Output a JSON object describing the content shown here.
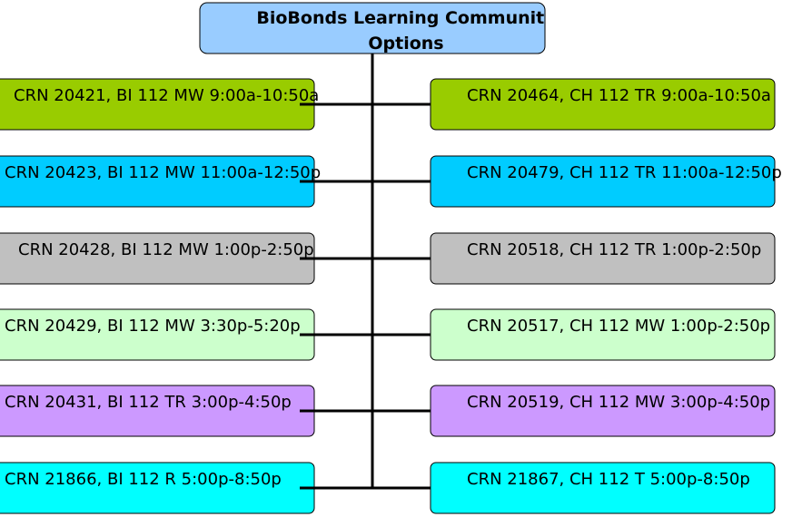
{
  "title": {
    "line1": "BioBonds Learning Community",
    "line2": "Options"
  },
  "left": [
    "CRN 20421, BI 112 MW 9:00a-10:50a",
    "CRN 20423, BI 112 MW 11:00a-12:50p",
    "CRN 20428, BI 112 MW 1:00p-2:50p",
    "CRN 20429, BI 112 MW 3:30p-5:20p",
    "CRN 20431, BI 112 TR 3:00p-4:50p",
    "CRN 21866, BI 112 R 5:00p-8:50p"
  ],
  "right": [
    "CRN 20464, CH 112 TR 9:00a-10:50a",
    "CRN 20479, CH 112 TR 11:00a-12:50p",
    "CRN 20518, CH 112 TR 1:00p-2:50p",
    "CRN 20517, CH 112 MW 1:00p-2:50p",
    "CRN 20519, CH 112 MW 3:00p-4:50p",
    "CRN 21867, CH 112 T 5:00p-8:50p"
  ]
}
